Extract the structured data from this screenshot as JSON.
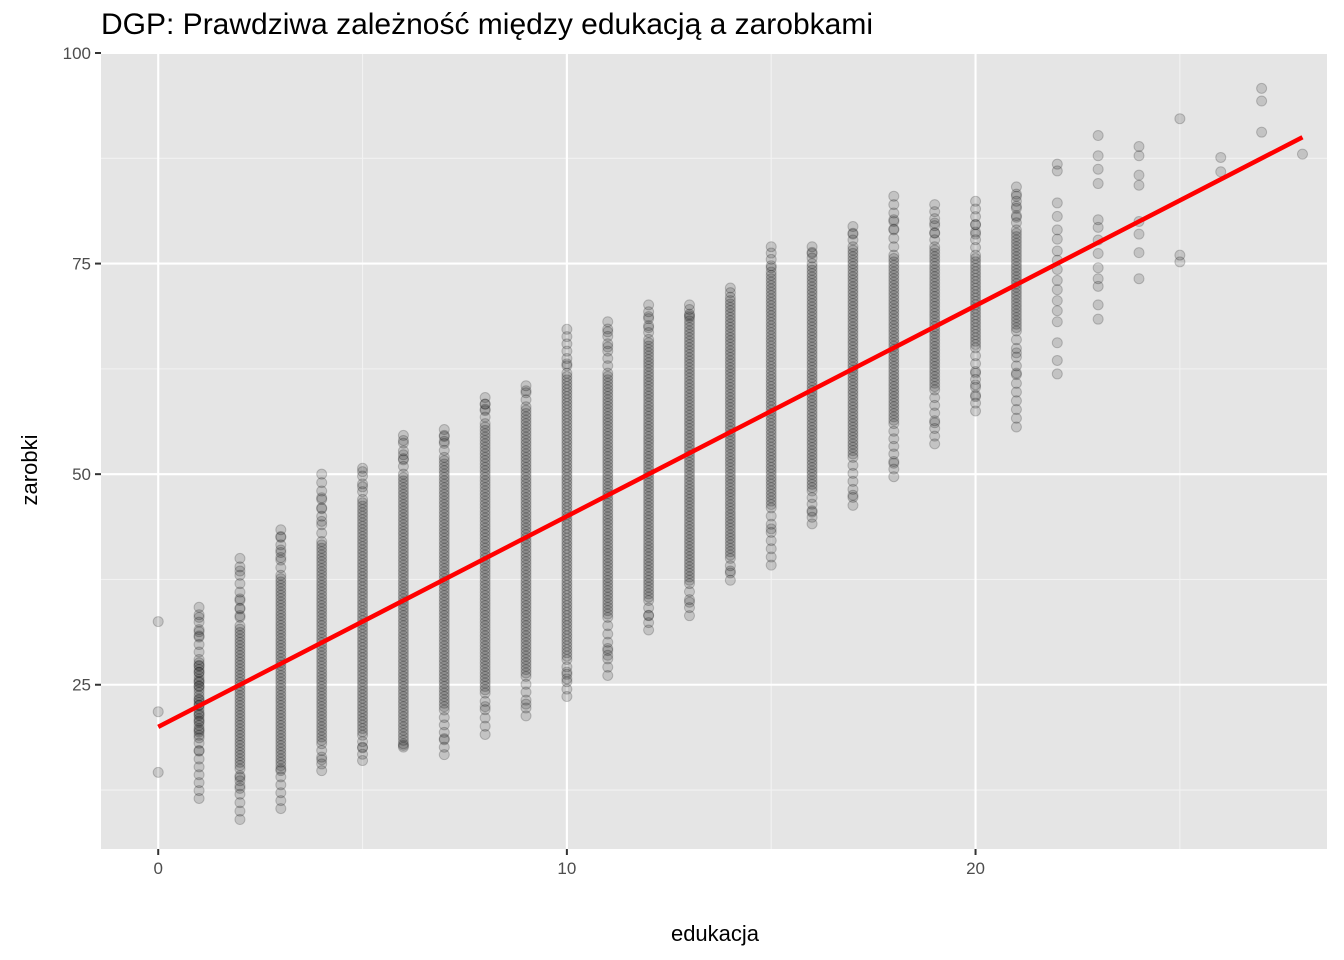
{
  "chart_data": {
    "type": "scatter",
    "title": "DGP: Prawdziwa zależność między edukacją a zarobkami",
    "xlabel": "edukacja",
    "ylabel": "zarobki",
    "xlim": [
      -1.4,
      28.6
    ],
    "ylim": [
      5.5,
      100
    ],
    "x_ticks": [
      0,
      10,
      20
    ],
    "x_tick_labels": [
      "0",
      "10",
      "20"
    ],
    "y_ticks": [
      25,
      50,
      75,
      100
    ],
    "y_tick_labels": [
      "25",
      "50",
      "75",
      "100"
    ],
    "grid": true,
    "background": "#e5e5e5",
    "point_color": "#000000",
    "point_alpha": 0.15,
    "scatter_columns": [
      {
        "x": 0,
        "min": 14.6,
        "max": 32.5,
        "core": null
      },
      {
        "x": 1,
        "min": 11.5,
        "max": 34.2,
        "core": [
          19,
          28
        ]
      },
      {
        "x": 2,
        "min": 9.0,
        "max": 40.0,
        "core": [
          15,
          32
        ]
      },
      {
        "x": 3,
        "min": 10.3,
        "max": 43.4,
        "core": [
          15,
          38
        ]
      },
      {
        "x": 4,
        "min": 14.8,
        "max": 50.0,
        "core": [
          18,
          42
        ]
      },
      {
        "x": 5,
        "min": 16.0,
        "max": 50.7,
        "core": [
          19,
          47
        ]
      },
      {
        "x": 6,
        "min": 17.6,
        "max": 54.6,
        "core": [
          18,
          50
        ]
      },
      {
        "x": 7,
        "min": 16.7,
        "max": 55.3,
        "core": [
          22,
          52
        ]
      },
      {
        "x": 8,
        "min": 19.1,
        "max": 59.1,
        "core": [
          24,
          56
        ]
      },
      {
        "x": 9,
        "min": 21.3,
        "max": 60.5,
        "core": [
          26,
          58
        ]
      },
      {
        "x": 10,
        "min": 23.6,
        "max": 67.2,
        "core": [
          28,
          62
        ]
      },
      {
        "x": 11,
        "min": 26.1,
        "max": 68.1,
        "core": [
          33,
          62
        ]
      },
      {
        "x": 12,
        "min": 31.5,
        "max": 70.1,
        "core": [
          35,
          66
        ]
      },
      {
        "x": 13,
        "min": 33.2,
        "max": 70.1,
        "core": [
          37,
          69
        ]
      },
      {
        "x": 14,
        "min": 37.4,
        "max": 72.1,
        "core": [
          40,
          71
        ]
      },
      {
        "x": 15,
        "min": 39.2,
        "max": 77.0,
        "core": [
          46,
          74
        ]
      },
      {
        "x": 16,
        "min": 44.1,
        "max": 77.0,
        "core": [
          48,
          75
        ]
      },
      {
        "x": 17,
        "min": 46.3,
        "max": 79.4,
        "core": [
          52,
          77
        ]
      },
      {
        "x": 18,
        "min": 49.7,
        "max": 83.0,
        "core": [
          56,
          76
        ]
      },
      {
        "x": 19,
        "min": 53.6,
        "max": 82.0,
        "core": [
          60,
          77
        ]
      },
      {
        "x": 20,
        "min": 57.5,
        "max": 82.4,
        "core": [
          65,
          76
        ]
      },
      {
        "x": 21,
        "min": 55.6,
        "max": 84.1,
        "core": [
          67,
          79
        ]
      },
      {
        "x": 22,
        "min": 61.9,
        "max": 86.8,
        "core": null
      },
      {
        "x": 23,
        "min": 68.4,
        "max": 90.2,
        "core": null
      },
      {
        "x": 24,
        "min": 73.2,
        "max": 88.9,
        "core": null
      }
    ],
    "sparse_points": [
      {
        "x": 0,
        "y": 32.5
      },
      {
        "x": 0,
        "y": 21.8
      },
      {
        "x": 0,
        "y": 14.6
      },
      {
        "x": 1,
        "y": 34.2
      },
      {
        "x": 1,
        "y": 33.0
      },
      {
        "x": 1,
        "y": 31.3
      },
      {
        "x": 1,
        "y": 30.8
      },
      {
        "x": 1,
        "y": 27.3
      },
      {
        "x": 1,
        "y": 26.5
      },
      {
        "x": 1,
        "y": 25.4
      },
      {
        "x": 1,
        "y": 24.8
      },
      {
        "x": 1,
        "y": 23.2
      },
      {
        "x": 1,
        "y": 22.6
      },
      {
        "x": 1,
        "y": 21.5
      },
      {
        "x": 1,
        "y": 20.7
      },
      {
        "x": 1,
        "y": 19.6
      },
      {
        "x": 1,
        "y": 18.7
      },
      {
        "x": 1,
        "y": 17.2
      },
      {
        "x": 1,
        "y": 11.5
      },
      {
        "x": 2,
        "y": 40.0
      },
      {
        "x": 2,
        "y": 38.5
      },
      {
        "x": 2,
        "y": 35.2
      },
      {
        "x": 2,
        "y": 34.1
      },
      {
        "x": 2,
        "y": 33.2
      },
      {
        "x": 2,
        "y": 14.2
      },
      {
        "x": 2,
        "y": 13.6
      },
      {
        "x": 2,
        "y": 12.7
      },
      {
        "x": 2,
        "y": 9.0
      },
      {
        "x": 3,
        "y": 43.4
      },
      {
        "x": 3,
        "y": 42.6
      },
      {
        "x": 3,
        "y": 41.0
      },
      {
        "x": 3,
        "y": 40.1
      },
      {
        "x": 3,
        "y": 14.8
      },
      {
        "x": 3,
        "y": 10.3
      },
      {
        "x": 4,
        "y": 50.0
      },
      {
        "x": 4,
        "y": 47.2
      },
      {
        "x": 4,
        "y": 45.9
      },
      {
        "x": 4,
        "y": 44.4
      },
      {
        "x": 4,
        "y": 16.1
      },
      {
        "x": 4,
        "y": 14.8
      },
      {
        "x": 5,
        "y": 50.7
      },
      {
        "x": 5,
        "y": 50.3
      },
      {
        "x": 5,
        "y": 48.5
      },
      {
        "x": 5,
        "y": 17.6
      },
      {
        "x": 5,
        "y": 16.0
      },
      {
        "x": 6,
        "y": 54.6
      },
      {
        "x": 6,
        "y": 54.0
      },
      {
        "x": 6,
        "y": 52.3
      },
      {
        "x": 6,
        "y": 51.7
      },
      {
        "x": 6,
        "y": 17.6
      },
      {
        "x": 7,
        "y": 55.3
      },
      {
        "x": 7,
        "y": 54.6
      },
      {
        "x": 7,
        "y": 53.9
      },
      {
        "x": 7,
        "y": 18.6
      },
      {
        "x": 7,
        "y": 16.7
      },
      {
        "x": 8,
        "y": 59.1
      },
      {
        "x": 8,
        "y": 58.3
      },
      {
        "x": 8,
        "y": 57.7
      },
      {
        "x": 8,
        "y": 22.4
      },
      {
        "x": 8,
        "y": 19.1
      },
      {
        "x": 9,
        "y": 60.5
      },
      {
        "x": 9,
        "y": 59.9
      },
      {
        "x": 9,
        "y": 22.7
      },
      {
        "x": 9,
        "y": 21.3
      },
      {
        "x": 10,
        "y": 67.2
      },
      {
        "x": 10,
        "y": 63.1
      },
      {
        "x": 10,
        "y": 26.5
      },
      {
        "x": 10,
        "y": 25.7
      },
      {
        "x": 10,
        "y": 23.6
      },
      {
        "x": 11,
        "y": 68.1
      },
      {
        "x": 11,
        "y": 66.9
      },
      {
        "x": 11,
        "y": 65.1
      },
      {
        "x": 11,
        "y": 29.3
      },
      {
        "x": 11,
        "y": 28.5
      },
      {
        "x": 11,
        "y": 26.1
      },
      {
        "x": 12,
        "y": 70.1
      },
      {
        "x": 12,
        "y": 68.7
      },
      {
        "x": 12,
        "y": 67.4
      },
      {
        "x": 12,
        "y": 33.2
      },
      {
        "x": 12,
        "y": 31.5
      },
      {
        "x": 13,
        "y": 70.1
      },
      {
        "x": 13,
        "y": 68.8
      },
      {
        "x": 13,
        "y": 34.8
      },
      {
        "x": 13,
        "y": 33.2
      },
      {
        "x": 14,
        "y": 72.1
      },
      {
        "x": 14,
        "y": 38.5
      },
      {
        "x": 14,
        "y": 37.4
      },
      {
        "x": 15,
        "y": 77.0
      },
      {
        "x": 15,
        "y": 74.5
      },
      {
        "x": 15,
        "y": 43.5
      },
      {
        "x": 15,
        "y": 39.2
      },
      {
        "x": 16,
        "y": 77.0
      },
      {
        "x": 16,
        "y": 76.2
      },
      {
        "x": 16,
        "y": 45.5
      },
      {
        "x": 16,
        "y": 44.1
      },
      {
        "x": 17,
        "y": 79.4
      },
      {
        "x": 17,
        "y": 78.5
      },
      {
        "x": 17,
        "y": 47.5
      },
      {
        "x": 17,
        "y": 46.3
      },
      {
        "x": 18,
        "y": 83.0
      },
      {
        "x": 18,
        "y": 80.2
      },
      {
        "x": 18,
        "y": 79.1
      },
      {
        "x": 18,
        "y": 51.3
      },
      {
        "x": 18,
        "y": 49.7
      },
      {
        "x": 19,
        "y": 82.0
      },
      {
        "x": 19,
        "y": 79.8
      },
      {
        "x": 19,
        "y": 78.6
      },
      {
        "x": 19,
        "y": 56.1
      },
      {
        "x": 19,
        "y": 53.6
      },
      {
        "x": 20,
        "y": 82.4
      },
      {
        "x": 20,
        "y": 79.6
      },
      {
        "x": 20,
        "y": 78.5
      },
      {
        "x": 20,
        "y": 62.0
      },
      {
        "x": 20,
        "y": 60.6
      },
      {
        "x": 20,
        "y": 59.2
      },
      {
        "x": 20,
        "y": 57.5
      },
      {
        "x": 21,
        "y": 84.1
      },
      {
        "x": 21,
        "y": 83.0
      },
      {
        "x": 21,
        "y": 81.8
      },
      {
        "x": 21,
        "y": 80.5
      },
      {
        "x": 21,
        "y": 64.4
      },
      {
        "x": 21,
        "y": 62.0
      },
      {
        "x": 21,
        "y": 55.6
      },
      {
        "x": 22,
        "y": 86.8
      },
      {
        "x": 22,
        "y": 86.0
      },
      {
        "x": 22,
        "y": 82.2
      },
      {
        "x": 22,
        "y": 80.6
      },
      {
        "x": 22,
        "y": 79.0
      },
      {
        "x": 22,
        "y": 77.9
      },
      {
        "x": 22,
        "y": 76.5
      },
      {
        "x": 22,
        "y": 75.4
      },
      {
        "x": 22,
        "y": 74.3
      },
      {
        "x": 22,
        "y": 73.0
      },
      {
        "x": 22,
        "y": 71.9
      },
      {
        "x": 22,
        "y": 70.6
      },
      {
        "x": 22,
        "y": 69.4
      },
      {
        "x": 22,
        "y": 68.1
      },
      {
        "x": 22,
        "y": 65.6
      },
      {
        "x": 22,
        "y": 63.5
      },
      {
        "x": 22,
        "y": 61.9
      },
      {
        "x": 23,
        "y": 90.2
      },
      {
        "x": 23,
        "y": 87.8
      },
      {
        "x": 23,
        "y": 86.2
      },
      {
        "x": 23,
        "y": 84.5
      },
      {
        "x": 23,
        "y": 80.2
      },
      {
        "x": 23,
        "y": 79.3
      },
      {
        "x": 23,
        "y": 77.8
      },
      {
        "x": 23,
        "y": 76.2
      },
      {
        "x": 23,
        "y": 74.5
      },
      {
        "x": 23,
        "y": 73.2
      },
      {
        "x": 23,
        "y": 72.3
      },
      {
        "x": 23,
        "y": 70.1
      },
      {
        "x": 23,
        "y": 68.4
      },
      {
        "x": 24,
        "y": 88.9
      },
      {
        "x": 24,
        "y": 87.8
      },
      {
        "x": 24,
        "y": 85.5
      },
      {
        "x": 24,
        "y": 84.3
      },
      {
        "x": 24,
        "y": 80.0
      },
      {
        "x": 24,
        "y": 78.5
      },
      {
        "x": 24,
        "y": 76.3
      },
      {
        "x": 24,
        "y": 73.2
      },
      {
        "x": 25,
        "y": 92.2
      },
      {
        "x": 25,
        "y": 76.0
      },
      {
        "x": 25,
        "y": 75.2
      },
      {
        "x": 26,
        "y": 87.6
      },
      {
        "x": 26,
        "y": 85.9
      },
      {
        "x": 27,
        "y": 95.8
      },
      {
        "x": 27,
        "y": 94.3
      },
      {
        "x": 27,
        "y": 90.6
      },
      {
        "x": 28,
        "y": 88.0
      }
    ],
    "line": {
      "x": [
        0,
        28
      ],
      "y": [
        20.0,
        90.0
      ],
      "color": "#ff0000"
    }
  }
}
